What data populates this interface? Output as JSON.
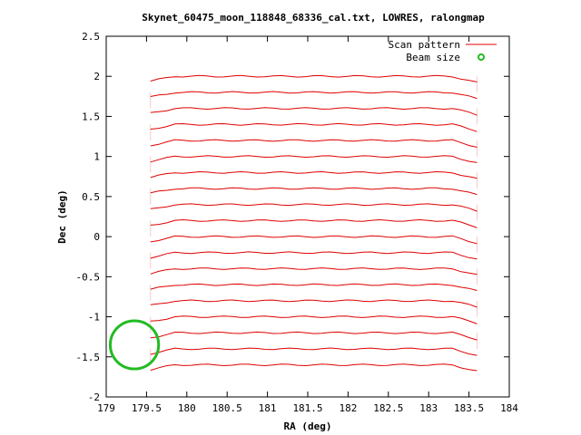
{
  "chart_data": {
    "type": "line",
    "title": "Skynet_60475_moon_118848_68336_cal.txt, LOWRES, ralongmap",
    "xlabel": "RA (deg)",
    "ylabel": "Dec (deg)",
    "xlim": [
      179,
      184
    ],
    "ylim": [
      -2,
      2.5
    ],
    "xticks": [
      "179",
      "179.5",
      "180",
      "180.5",
      "181",
      "181.5",
      "182",
      "182.5",
      "183",
      "183.5",
      "184"
    ],
    "yticks": [
      "2.5",
      "2",
      "1.5",
      "1",
      "0.5",
      "0",
      "-0.5",
      "-1",
      "-1.5",
      "-2"
    ],
    "grid": false,
    "legend_position": "top-right",
    "series": [
      {
        "name": "Scan pattern",
        "color": "#e00000",
        "kind": "raster-scan",
        "scan_rows_dec": [
          2.0,
          1.8,
          1.6,
          1.4,
          1.2,
          1.0,
          0.8,
          0.6,
          0.4,
          0.2,
          0.0,
          -0.2,
          -0.4,
          -0.6,
          -0.8,
          -1.0,
          -1.2,
          -1.4,
          -1.6
        ],
        "ra_start": 179.55,
        "ra_end": 183.6
      },
      {
        "name": "Beam size",
        "color": "#22bb22",
        "kind": "circle",
        "center_ra": 179.35,
        "center_dec": -1.35,
        "radius_deg": 0.3
      }
    ]
  }
}
